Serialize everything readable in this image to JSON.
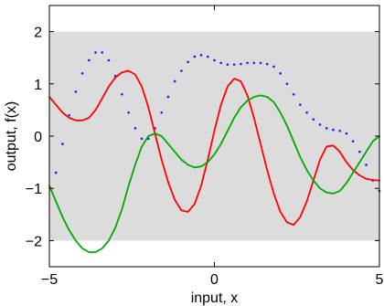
{
  "chart_data": {
    "type": "line",
    "xlabel": "input, x",
    "ylabel": "output, f(x)",
    "xlim": [
      -5,
      5
    ],
    "ylim": [
      -2.5,
      2.5
    ],
    "xticks": [
      -5,
      0,
      5
    ],
    "xtick_labels": [
      "−5",
      "0",
      "5"
    ],
    "yticks": [
      -2,
      -1,
      0,
      1,
      2
    ],
    "ytick_labels": [
      "−2",
      "−1",
      "0",
      "1",
      "2"
    ],
    "band": {
      "lower": -2,
      "upper": 2,
      "color": "#dcdcdc"
    },
    "grid": false,
    "series": [
      {
        "style": "dotted",
        "color": "#1a1aff",
        "x": [
          -4.8,
          -4.6,
          -4.4,
          -4.2,
          -4.0,
          -3.8,
          -3.6,
          -3.4,
          -3.2,
          -3.0,
          -2.8,
          -2.6,
          -2.4,
          -2.2,
          -2.0,
          -1.8,
          -1.6,
          -1.4,
          -1.2,
          -1.0,
          -0.8,
          -0.6,
          -0.4,
          -0.2,
          0.0,
          0.2,
          0.4,
          0.6,
          0.8,
          1.0,
          1.2,
          1.4,
          1.6,
          1.8,
          2.0,
          2.2,
          2.4,
          2.6,
          2.8,
          3.0,
          3.2,
          3.4,
          3.6,
          3.8,
          4.0,
          4.2,
          4.4,
          4.6,
          4.8,
          5.0
        ],
        "y": [
          -0.7,
          -0.15,
          0.4,
          0.85,
          1.2,
          1.45,
          1.6,
          1.6,
          1.45,
          1.15,
          0.8,
          0.45,
          0.15,
          -0.05,
          -0.05,
          0.15,
          0.45,
          0.75,
          1.05,
          1.25,
          1.42,
          1.52,
          1.55,
          1.52,
          1.45,
          1.4,
          1.37,
          1.37,
          1.38,
          1.4,
          1.4,
          1.4,
          1.38,
          1.33,
          1.2,
          1.0,
          0.8,
          0.6,
          0.45,
          0.32,
          0.22,
          0.15,
          0.12,
          0.1,
          0.05,
          -0.1,
          -0.3,
          -0.55,
          -0.85,
          -1.05
        ]
      },
      {
        "style": "solid",
        "color": "#ff0000",
        "x": [
          -5.0,
          -4.8,
          -4.6,
          -4.4,
          -4.2,
          -4.0,
          -3.8,
          -3.6,
          -3.4,
          -3.2,
          -3.0,
          -2.8,
          -2.6,
          -2.4,
          -2.2,
          -2.0,
          -1.8,
          -1.6,
          -1.4,
          -1.2,
          -1.0,
          -0.8,
          -0.6,
          -0.4,
          -0.2,
          0.0,
          0.2,
          0.4,
          0.6,
          0.8,
          1.0,
          1.2,
          1.4,
          1.6,
          1.8,
          2.0,
          2.2,
          2.4,
          2.6,
          2.8,
          3.0,
          3.2,
          3.4,
          3.6,
          3.8,
          4.0,
          4.2,
          4.4,
          4.6,
          4.8,
          5.0
        ],
        "y": [
          0.75,
          0.6,
          0.45,
          0.35,
          0.3,
          0.3,
          0.35,
          0.5,
          0.72,
          0.95,
          1.12,
          1.22,
          1.25,
          1.18,
          0.95,
          0.55,
          0.05,
          -0.45,
          -0.88,
          -1.22,
          -1.42,
          -1.45,
          -1.3,
          -0.95,
          -0.45,
          0.1,
          0.6,
          0.95,
          1.1,
          1.05,
          0.78,
          0.35,
          -0.15,
          -0.65,
          -1.1,
          -1.45,
          -1.65,
          -1.7,
          -1.55,
          -1.25,
          -0.85,
          -0.45,
          -0.2,
          -0.18,
          -0.3,
          -0.5,
          -0.65,
          -0.75,
          -0.82,
          -0.84,
          -0.85
        ]
      },
      {
        "style": "solid",
        "color": "#00aa00",
        "x": [
          -5.0,
          -4.8,
          -4.6,
          -4.4,
          -4.2,
          -4.0,
          -3.8,
          -3.6,
          -3.4,
          -3.2,
          -3.0,
          -2.8,
          -2.6,
          -2.4,
          -2.2,
          -2.0,
          -1.8,
          -1.6,
          -1.4,
          -1.2,
          -1.0,
          -0.8,
          -0.6,
          -0.4,
          -0.2,
          0.0,
          0.2,
          0.4,
          0.6,
          0.8,
          1.0,
          1.2,
          1.4,
          1.6,
          1.8,
          2.0,
          2.2,
          2.4,
          2.6,
          2.8,
          3.0,
          3.2,
          3.4,
          3.6,
          3.8,
          4.0,
          4.2,
          4.4,
          4.6,
          4.8,
          5.0
        ],
        "y": [
          -0.95,
          -1.25,
          -1.55,
          -1.8,
          -2.0,
          -2.15,
          -2.22,
          -2.22,
          -2.15,
          -2.0,
          -1.75,
          -1.4,
          -0.95,
          -0.55,
          -0.2,
          0.0,
          0.05,
          0.0,
          -0.15,
          -0.3,
          -0.45,
          -0.55,
          -0.6,
          -0.58,
          -0.5,
          -0.35,
          -0.15,
          0.1,
          0.35,
          0.55,
          0.68,
          0.75,
          0.78,
          0.75,
          0.65,
          0.45,
          0.2,
          -0.1,
          -0.4,
          -0.65,
          -0.85,
          -1.0,
          -1.08,
          -1.1,
          -1.05,
          -0.9,
          -0.7,
          -0.5,
          -0.3,
          -0.1,
          0.0
        ]
      }
    ]
  }
}
